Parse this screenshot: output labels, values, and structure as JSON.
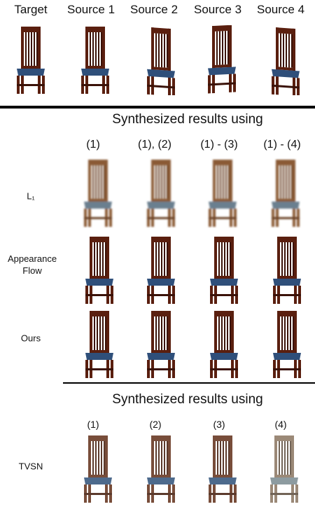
{
  "header": {
    "labels": [
      "Target",
      "Source 1",
      "Source 2",
      "Source 3",
      "Source 4"
    ]
  },
  "section1": {
    "title": "Synthesized results using",
    "columns": [
      "(1)",
      "(1), (2)",
      "(1) - (3)",
      "(1) - (4)"
    ],
    "rows": [
      {
        "label_line1": "L₁",
        "label_line2": ""
      },
      {
        "label_line1": "Appearance",
        "label_line2": "Flow"
      },
      {
        "label_line1": "Ours",
        "label_line2": ""
      }
    ]
  },
  "section2": {
    "title": "Synthesized results using",
    "columns": [
      "(1)",
      "(2)",
      "(3)",
      "(4)"
    ],
    "row_label": "TVSN"
  },
  "colors": {
    "wood": "#5a1f0f",
    "wood_dark": "#3a1208",
    "seat_blue": "#2f4f7a",
    "blur_wood": "#8a5a35",
    "blur_seat": "#6a7f8f",
    "rule": "#000000"
  }
}
